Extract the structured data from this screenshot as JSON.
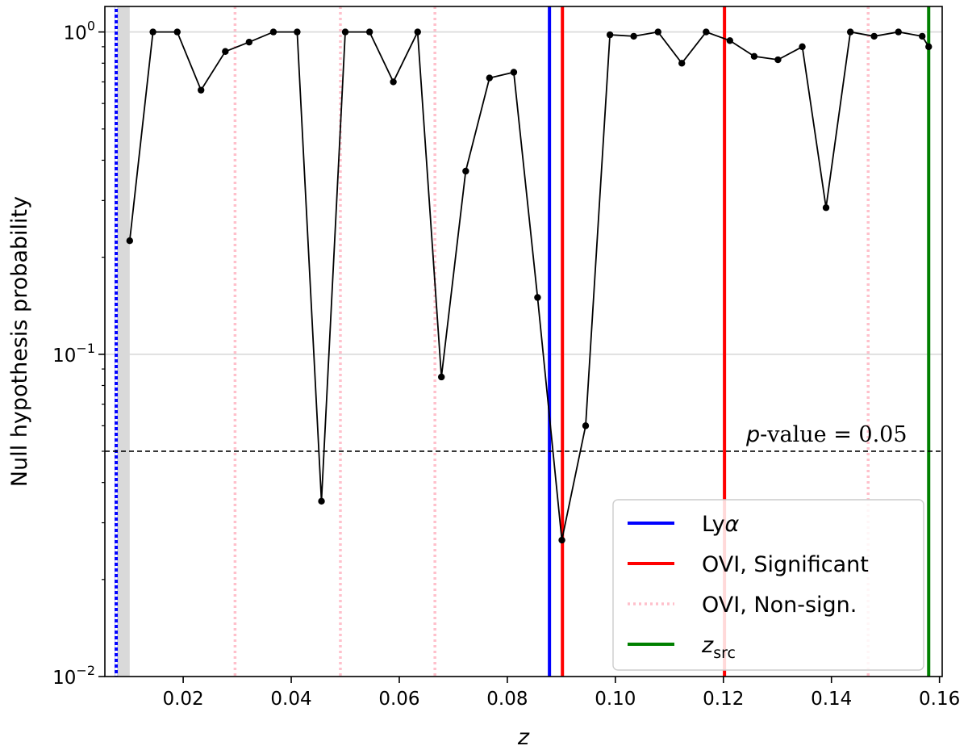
{
  "chart_data": {
    "type": "line",
    "xlabel": "z",
    "ylabel": "Null hypothesis probability",
    "xlim": [
      0.0055,
      0.1605
    ],
    "ylim": [
      0.01,
      1.2
    ],
    "yscale": "log",
    "grid": "horizontal",
    "xticks": [
      0.02,
      0.04,
      0.06,
      0.08,
      0.1,
      0.12,
      0.14,
      0.16
    ],
    "xtick_labels": [
      "0.02",
      "0.04",
      "0.06",
      "0.08",
      "0.10",
      "0.12",
      "0.14",
      "0.16"
    ],
    "yticks": [
      {
        "value": 1,
        "base": "10",
        "exp": "0"
      },
      {
        "value": 0.1,
        "base": "10",
        "exp": "−1"
      },
      {
        "value": 0.01,
        "base": "10",
        "exp": "−2"
      }
    ],
    "series": [
      {
        "x": [
          0.0101,
          0.0144,
          0.0189,
          0.0233,
          0.0278,
          0.0322,
          0.0367,
          0.0411,
          0.0456,
          0.05,
          0.0545,
          0.0589,
          0.0634,
          0.0678,
          0.0723,
          0.0767,
          0.0812,
          0.0856,
          0.0901,
          0.0945,
          0.099,
          0.1034,
          0.1079,
          0.1123,
          0.1168,
          0.1212,
          0.1257,
          0.1301,
          0.1346,
          0.139,
          0.1435,
          0.1479,
          0.1524,
          0.1568,
          0.158
        ],
        "values": [
          0.225,
          1.0,
          1.0,
          0.66,
          0.87,
          0.93,
          1.0,
          1.0,
          0.035,
          1.0,
          1.0,
          0.7,
          1.0,
          0.085,
          0.37,
          0.72,
          0.75,
          0.15,
          0.0265,
          0.06,
          0.98,
          0.97,
          1.0,
          0.8,
          1.0,
          0.94,
          0.84,
          0.82,
          0.9,
          0.285,
          1.0,
          0.97,
          1.0,
          0.97,
          0.9
        ],
        "color": "#000000"
      }
    ],
    "shaded_band": {
      "x0": 0.0074,
      "x1": 0.0101,
      "color": "#d9d9d9"
    },
    "threshold": {
      "value": 0.05,
      "label_italic": "p",
      "label_rest": "-value = 0.05"
    },
    "vertical_lines": [
      {
        "x": 0.0076,
        "kind": "lya",
        "color": "#0000ff"
      },
      {
        "x": 0.0878,
        "kind": "lya",
        "color": "#0000ff"
      },
      {
        "x": 0.0076,
        "kind": "ovi-nonsig",
        "color": "#ffffff"
      },
      {
        "x": 0.0296,
        "kind": "ovi-nonsig",
        "color": "#ffc0cb"
      },
      {
        "x": 0.0491,
        "kind": "ovi-nonsig",
        "color": "#ffc0cb"
      },
      {
        "x": 0.0666,
        "kind": "ovi-nonsig",
        "color": "#ffc0cb"
      },
      {
        "x": 0.1468,
        "kind": "ovi-nonsig",
        "color": "#ffc0cb"
      },
      {
        "x": 0.0902,
        "kind": "ovi-sig",
        "color": "#ff0000"
      },
      {
        "x": 0.1202,
        "kind": "ovi-sig",
        "color": "#ff0000"
      },
      {
        "x": 0.158,
        "kind": "zsrc",
        "color": "#008000"
      }
    ],
    "legend": {
      "position": "lower-right",
      "entries": [
        {
          "label_main": "Ly",
          "label_greek": "α",
          "label_sub": "",
          "color": "#0000ff",
          "style": "solid"
        },
        {
          "label_main": "OVI, Significant",
          "label_greek": "",
          "label_sub": "",
          "color": "#ff0000",
          "style": "solid"
        },
        {
          "label_main": "OVI, Non-sign.",
          "label_greek": "",
          "label_sub": "",
          "color": "#ffc0cb",
          "style": "dotted"
        },
        {
          "label_main": "z",
          "label_greek": "",
          "label_sub": "src",
          "color": "#008000",
          "style": "solid"
        }
      ]
    }
  }
}
